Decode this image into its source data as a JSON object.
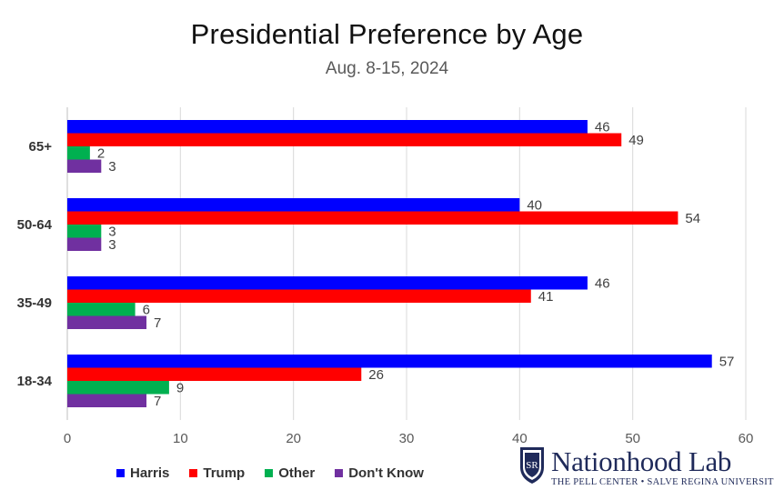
{
  "chart_data": {
    "type": "bar",
    "orientation": "horizontal",
    "title": "Presidential Preference by Age",
    "subtitle": "Aug. 8-15, 2024",
    "categories": [
      "65+",
      "50-64",
      "35-49",
      "18-34"
    ],
    "series": [
      {
        "name": "Harris",
        "color": "#0000ff",
        "values": [
          46,
          40,
          46,
          57
        ]
      },
      {
        "name": "Trump",
        "color": "#ff0000",
        "values": [
          49,
          54,
          41,
          26
        ]
      },
      {
        "name": "Other",
        "color": "#00b050",
        "values": [
          2,
          3,
          6,
          9
        ]
      },
      {
        "name": "Don't Know",
        "color": "#7030a0",
        "values": [
          3,
          3,
          7,
          7
        ]
      }
    ],
    "xlim": [
      0,
      60
    ],
    "xticks": [
      0,
      10,
      20,
      30,
      40,
      50,
      60
    ],
    "xlabel": "",
    "ylabel": "",
    "grid": true,
    "legend_position": "bottom-left"
  },
  "legend": {
    "items": [
      {
        "label": "Harris",
        "color": "#0000ff"
      },
      {
        "label": "Trump",
        "color": "#ff0000"
      },
      {
        "label": "Other",
        "color": "#00b050"
      },
      {
        "label": "Don't Know",
        "color": "#7030a0"
      }
    ]
  },
  "logo": {
    "name": "Nationhood Lab",
    "subtitle": "THE PELL CENTER • SALVE REGINA UNIVERSITY",
    "emblem_text": "SR",
    "color": "#1f2a5a"
  }
}
